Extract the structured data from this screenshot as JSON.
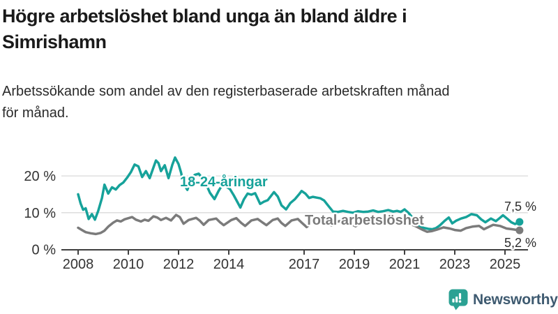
{
  "header": {
    "title_line1": "Högre arbetslöshet bland unga än bland äldre i",
    "title_line2": "Simrishamn",
    "subtitle_line1": "Arbetssökande som andel av den registerbaserade arbetskraften månad",
    "subtitle_line2": "för månad."
  },
  "footer": {
    "brand": "Newsworthy",
    "logo_icon": "bar-chart-speech-bubble-icon"
  },
  "colors": {
    "youth_line": "#16a29a",
    "total_line": "#7b7b7b",
    "gridline": "#d9d9d9",
    "axis": "#3f3f3f",
    "tick_text": "#333333",
    "brand_icon": "#2ba193",
    "brand_text": "#3e5a70"
  },
  "chart_data": {
    "type": "line",
    "title": "Högre arbetslöshet bland unga än bland äldre i Simrishamn",
    "subtitle": "Arbetssökande som andel av den registerbaserade arbetskraften månad för månad.",
    "unit": "%",
    "grid": true,
    "legend_position": "inline-labels",
    "x_axis": {
      "range": [
        2007.4,
        2026.1
      ],
      "ticks": [
        {
          "value": 2008,
          "label": "2008"
        },
        {
          "value": 2010,
          "label": "2010"
        },
        {
          "value": 2012,
          "label": "2012"
        },
        {
          "value": 2014,
          "label": "2014"
        },
        {
          "value": 2017,
          "label": "2017"
        },
        {
          "value": 2019,
          "label": "2019"
        },
        {
          "value": 2021,
          "label": "2021"
        },
        {
          "value": 2023,
          "label": "2023"
        },
        {
          "value": 2025,
          "label": "2025"
        }
      ]
    },
    "y_axis": {
      "range": [
        0,
        28
      ],
      "ticks": [
        {
          "value": 0,
          "label": "0 %"
        },
        {
          "value": 10,
          "label": "10 %"
        },
        {
          "value": 20,
          "label": "20 %"
        }
      ]
    },
    "series": [
      {
        "name": "18-24-åringar",
        "color": "#16a29a",
        "end_label": "7,5 %",
        "end_value": 7.5,
        "points": [
          [
            2008.0,
            15.0
          ],
          [
            2008.1,
            12.5
          ],
          [
            2008.2,
            10.8
          ],
          [
            2008.3,
            11.2
          ],
          [
            2008.42,
            8.3
          ],
          [
            2008.55,
            9.6
          ],
          [
            2008.67,
            8.1
          ],
          [
            2008.8,
            10.5
          ],
          [
            2008.95,
            14.0
          ],
          [
            2009.05,
            17.6
          ],
          [
            2009.2,
            15.2
          ],
          [
            2009.35,
            16.9
          ],
          [
            2009.5,
            16.3
          ],
          [
            2009.65,
            17.5
          ],
          [
            2009.8,
            18.2
          ],
          [
            2009.95,
            19.5
          ],
          [
            2010.1,
            21.0
          ],
          [
            2010.25,
            23.1
          ],
          [
            2010.4,
            22.6
          ],
          [
            2010.55,
            19.7
          ],
          [
            2010.7,
            21.3
          ],
          [
            2010.85,
            19.4
          ],
          [
            2011.0,
            22.3
          ],
          [
            2011.1,
            24.2
          ],
          [
            2011.2,
            23.5
          ],
          [
            2011.3,
            21.3
          ],
          [
            2011.45,
            22.9
          ],
          [
            2011.6,
            19.4
          ],
          [
            2011.75,
            23.0
          ],
          [
            2011.86,
            25.0
          ],
          [
            2012.0,
            23.2
          ],
          [
            2012.1,
            20.9
          ],
          [
            2012.2,
            17.8
          ],
          [
            2012.35,
            16.2
          ],
          [
            2012.5,
            19.2
          ],
          [
            2012.65,
            20.3
          ],
          [
            2012.8,
            20.6
          ],
          [
            2012.95,
            19.4
          ],
          [
            2013.1,
            17.7
          ],
          [
            2013.25,
            15.4
          ],
          [
            2013.43,
            13.7
          ],
          [
            2013.6,
            16.0
          ],
          [
            2013.75,
            17.6
          ],
          [
            2013.9,
            17.1
          ],
          [
            2014.05,
            16.4
          ],
          [
            2014.2,
            14.7
          ],
          [
            2014.35,
            12.8
          ],
          [
            2014.46,
            11.4
          ],
          [
            2014.6,
            13.6
          ],
          [
            2014.75,
            15.2
          ],
          [
            2014.9,
            14.9
          ],
          [
            2015.05,
            15.3
          ],
          [
            2015.25,
            12.4
          ],
          [
            2015.4,
            13.0
          ],
          [
            2015.55,
            13.4
          ],
          [
            2015.8,
            15.6
          ],
          [
            2015.95,
            14.4
          ],
          [
            2016.1,
            12.0
          ],
          [
            2016.28,
            10.9
          ],
          [
            2016.45,
            12.6
          ],
          [
            2016.64,
            13.7
          ],
          [
            2016.8,
            15.0
          ],
          [
            2016.9,
            15.9
          ],
          [
            2017.05,
            15.2
          ],
          [
            2017.2,
            14.0
          ],
          [
            2017.35,
            14.3
          ],
          [
            2017.5,
            14.1
          ],
          [
            2017.65,
            13.9
          ],
          [
            2017.8,
            13.3
          ],
          [
            2017.95,
            12.0
          ],
          [
            2018.15,
            10.3
          ],
          [
            2018.35,
            10.2
          ],
          [
            2018.55,
            10.5
          ],
          [
            2018.75,
            10.2
          ],
          [
            2018.95,
            10.0
          ],
          [
            2019.15,
            10.4
          ],
          [
            2019.35,
            10.2
          ],
          [
            2019.55,
            10.3
          ],
          [
            2019.75,
            10.6
          ],
          [
            2019.95,
            10.2
          ],
          [
            2020.15,
            10.4
          ],
          [
            2020.35,
            10.7
          ],
          [
            2020.55,
            10.3
          ],
          [
            2020.7,
            10.5
          ],
          [
            2020.85,
            10.2
          ],
          [
            2021.0,
            10.9
          ],
          [
            2021.15,
            10.0
          ],
          [
            2021.3,
            8.8
          ],
          [
            2021.45,
            7.5
          ],
          [
            2021.6,
            6.3
          ],
          [
            2021.75,
            5.9
          ],
          [
            2021.95,
            5.6
          ],
          [
            2022.1,
            5.5
          ],
          [
            2022.25,
            5.8
          ],
          [
            2022.4,
            6.5
          ],
          [
            2022.6,
            7.8
          ],
          [
            2022.76,
            8.7
          ],
          [
            2022.9,
            7.1
          ],
          [
            2023.05,
            7.8
          ],
          [
            2023.25,
            8.4
          ],
          [
            2023.45,
            8.8
          ],
          [
            2023.66,
            9.6
          ],
          [
            2023.88,
            9.3
          ],
          [
            2024.05,
            8.2
          ],
          [
            2024.22,
            7.4
          ],
          [
            2024.44,
            8.4
          ],
          [
            2024.64,
            7.7
          ],
          [
            2024.8,
            8.6
          ],
          [
            2024.92,
            9.3
          ],
          [
            2025.08,
            8.4
          ],
          [
            2025.25,
            7.4
          ],
          [
            2025.4,
            6.9
          ],
          [
            2025.58,
            7.5
          ]
        ]
      },
      {
        "name": "Total arbetslöshet",
        "color": "#7b7b7b",
        "end_label": "5,2 %",
        "end_value": 5.2,
        "points": [
          [
            2008.0,
            5.9
          ],
          [
            2008.15,
            5.3
          ],
          [
            2008.3,
            4.7
          ],
          [
            2008.5,
            4.4
          ],
          [
            2008.7,
            4.2
          ],
          [
            2008.9,
            4.5
          ],
          [
            2009.05,
            5.1
          ],
          [
            2009.2,
            6.2
          ],
          [
            2009.4,
            7.3
          ],
          [
            2009.55,
            7.9
          ],
          [
            2009.7,
            7.6
          ],
          [
            2009.85,
            8.2
          ],
          [
            2010.0,
            8.5
          ],
          [
            2010.15,
            8.8
          ],
          [
            2010.3,
            8.1
          ],
          [
            2010.5,
            7.6
          ],
          [
            2010.65,
            8.1
          ],
          [
            2010.8,
            7.8
          ],
          [
            2011.0,
            9.0
          ],
          [
            2011.15,
            8.7
          ],
          [
            2011.3,
            8.0
          ],
          [
            2011.5,
            8.6
          ],
          [
            2011.7,
            7.9
          ],
          [
            2011.9,
            9.4
          ],
          [
            2012.05,
            8.8
          ],
          [
            2012.2,
            7.0
          ],
          [
            2012.4,
            8.0
          ],
          [
            2012.7,
            8.6
          ],
          [
            2012.85,
            7.8
          ],
          [
            2013.0,
            6.7
          ],
          [
            2013.2,
            8.0
          ],
          [
            2013.5,
            8.4
          ],
          [
            2013.65,
            7.4
          ],
          [
            2013.8,
            6.6
          ],
          [
            2014.1,
            8.0
          ],
          [
            2014.3,
            8.5
          ],
          [
            2014.5,
            7.2
          ],
          [
            2014.65,
            6.4
          ],
          [
            2014.9,
            7.9
          ],
          [
            2015.15,
            8.3
          ],
          [
            2015.35,
            7.3
          ],
          [
            2015.5,
            6.6
          ],
          [
            2015.75,
            8.0
          ],
          [
            2015.95,
            8.4
          ],
          [
            2016.1,
            7.2
          ],
          [
            2016.25,
            6.4
          ],
          [
            2016.5,
            7.9
          ],
          [
            2016.75,
            8.3
          ],
          [
            2016.95,
            7.0
          ],
          [
            2017.1,
            6.1
          ],
          [
            2017.3,
            7.3
          ],
          [
            2017.5,
            8.0
          ],
          [
            2017.7,
            8.2
          ],
          [
            2017.9,
            7.2
          ],
          [
            2018.1,
            6.5
          ],
          [
            2018.35,
            7.6
          ],
          [
            2018.6,
            8.0
          ],
          [
            2018.85,
            7.0
          ],
          [
            2019.05,
            6.3
          ],
          [
            2019.3,
            7.4
          ],
          [
            2019.55,
            7.8
          ],
          [
            2019.8,
            7.2
          ],
          [
            2020.0,
            6.8
          ],
          [
            2020.2,
            8.0
          ],
          [
            2020.45,
            8.5
          ],
          [
            2020.7,
            8.2
          ],
          [
            2020.95,
            7.6
          ],
          [
            2021.2,
            7.0
          ],
          [
            2021.45,
            6.3
          ],
          [
            2021.7,
            5.4
          ],
          [
            2021.9,
            4.8
          ],
          [
            2022.1,
            5.0
          ],
          [
            2022.3,
            5.4
          ],
          [
            2022.55,
            6.0
          ],
          [
            2022.8,
            5.7
          ],
          [
            2023.0,
            5.3
          ],
          [
            2023.24,
            5.1
          ],
          [
            2023.45,
            5.8
          ],
          [
            2023.7,
            6.2
          ],
          [
            2023.97,
            6.4
          ],
          [
            2024.16,
            5.5
          ],
          [
            2024.53,
            6.7
          ],
          [
            2024.8,
            6.4
          ],
          [
            2025.06,
            5.7
          ],
          [
            2025.28,
            5.5
          ],
          [
            2025.58,
            5.2
          ]
        ]
      }
    ]
  }
}
